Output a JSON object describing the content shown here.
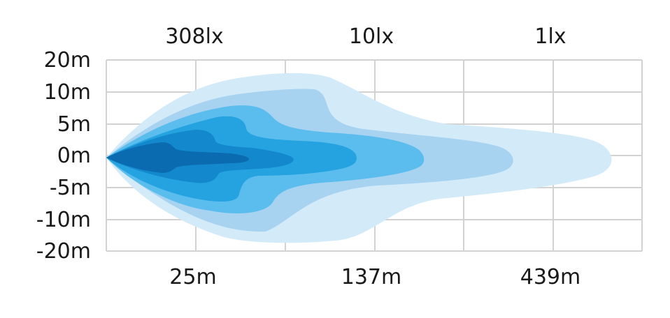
{
  "chart_data": {
    "type": "heatmap",
    "title": "",
    "xlabel": "",
    "ylabel": "",
    "top_labels": [
      "308lx",
      "10lx",
      "1lx"
    ],
    "bottom_labels": [
      "25m",
      "137m",
      "439m"
    ],
    "y_tick_labels": [
      "20m",
      "10m",
      "5m",
      "0m",
      "-5m",
      "-10m",
      "-20m"
    ],
    "grid": true,
    "series": [
      {
        "level": 1,
        "color": "#d3ebf9"
      },
      {
        "level": 2,
        "color": "#a7d3f1"
      },
      {
        "level": 3,
        "color": "#5bbded"
      },
      {
        "level": 4,
        "color": "#24a3e0"
      },
      {
        "level": 5,
        "color": "#1388cc"
      },
      {
        "level": 6,
        "color": "#0b6bb0"
      }
    ]
  }
}
